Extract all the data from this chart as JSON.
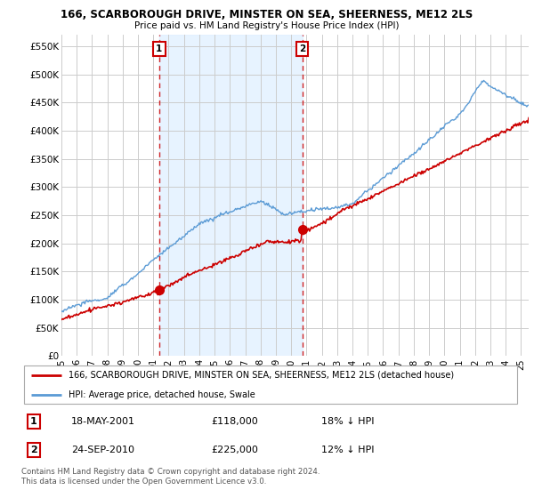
{
  "title": "166, SCARBOROUGH DRIVE, MINSTER ON SEA, SHEERNESS, ME12 2LS",
  "subtitle": "Price paid vs. HM Land Registry's House Price Index (HPI)",
  "legend_line1": "166, SCARBOROUGH DRIVE, MINSTER ON SEA, SHEERNESS, ME12 2LS (detached house)",
  "legend_line2": "HPI: Average price, detached house, Swale",
  "annotation1_label": "1",
  "annotation1_date": "18-MAY-2001",
  "annotation1_price": "£118,000",
  "annotation1_hpi": "18% ↓ HPI",
  "annotation1_year": 2001.38,
  "annotation1_value": 118000,
  "annotation2_label": "2",
  "annotation2_date": "24-SEP-2010",
  "annotation2_price": "£225,000",
  "annotation2_hpi": "12% ↓ HPI",
  "annotation2_year": 2010.72,
  "annotation2_value": 225000,
  "hpi_color": "#5b9bd5",
  "hpi_fill_color": "#ddeeff",
  "price_color": "#cc0000",
  "background_color": "#ffffff",
  "grid_color": "#cccccc",
  "ylim": [
    0,
    570000
  ],
  "xlim_start": 1995.0,
  "xlim_end": 2025.5,
  "footer": "Contains HM Land Registry data © Crown copyright and database right 2024.\nThis data is licensed under the Open Government Licence v3.0."
}
